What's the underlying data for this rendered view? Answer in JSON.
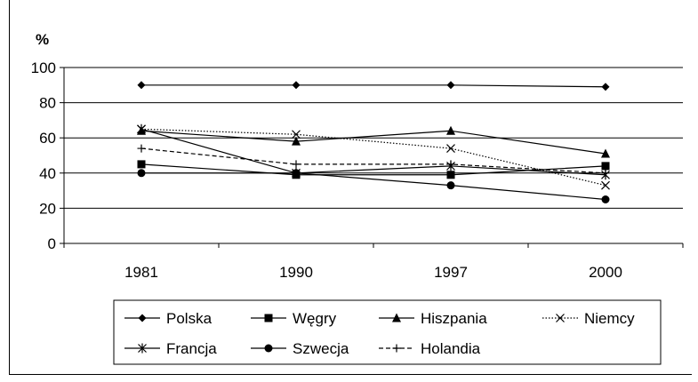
{
  "chart_data": {
    "type": "line",
    "ylabel": "%",
    "categories": [
      "1981",
      "1990",
      "1997",
      "2000"
    ],
    "ylim": [
      0,
      100
    ],
    "yticks": [
      0,
      20,
      40,
      60,
      80,
      100
    ],
    "grid": true,
    "legend_position": "bottom",
    "series": [
      {
        "name": "Polska",
        "values": [
          90,
          90,
          90,
          89
        ],
        "marker": "diamond",
        "dash": "solid"
      },
      {
        "name": "Węgry",
        "values": [
          45,
          39,
          39,
          44
        ],
        "marker": "square",
        "dash": "solid"
      },
      {
        "name": "Hiszpania",
        "values": [
          64,
          58,
          64,
          51
        ],
        "marker": "triangle",
        "dash": "solid"
      },
      {
        "name": "Niemcy",
        "values": [
          65,
          62,
          54,
          33
        ],
        "marker": "x",
        "dash": "dotted"
      },
      {
        "name": "Francja",
        "values": [
          65,
          40,
          44,
          39
        ],
        "marker": "star",
        "dash": "solid"
      },
      {
        "name": "Szwecja",
        "values": [
          40,
          40,
          33,
          25
        ],
        "marker": "circle",
        "dash": "solid"
      },
      {
        "name": "Holandia",
        "values": [
          54,
          45,
          45,
          40
        ],
        "marker": "plus",
        "dash": "dashed"
      }
    ]
  },
  "colors": {
    "line": "#000000",
    "grid": "#000000"
  }
}
